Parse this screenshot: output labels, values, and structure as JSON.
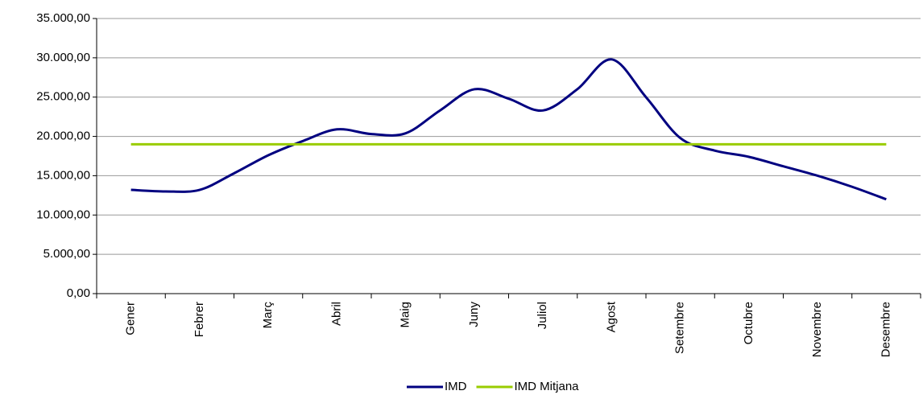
{
  "chart_data": {
    "type": "line",
    "categories": [
      "Gener",
      null,
      "Febrer",
      null,
      "Març",
      null,
      "Abril",
      null,
      "Maig",
      null,
      "Juny",
      null,
      "Juliol",
      null,
      "Agost",
      null,
      "Setembre",
      null,
      "Octubre",
      null,
      "Novembre",
      null,
      "Desembre"
    ],
    "series": [
      {
        "name": "IMD",
        "color": "#000080",
        "values": [
          13200,
          13000,
          13200,
          15300,
          17600,
          19400,
          20900,
          20300,
          20400,
          23300,
          26000,
          24800,
          23300,
          26000,
          29800,
          25000,
          19800,
          18200,
          17400,
          16200,
          15000,
          13600,
          12000
        ]
      },
      {
        "name": "IMD Mitjana",
        "color": "#99cc00",
        "values": [
          19000,
          19000,
          19000,
          19000,
          19000,
          19000,
          19000,
          19000,
          19000,
          19000,
          19000,
          19000,
          19000,
          19000,
          19000,
          19000,
          19000,
          19000,
          19000,
          19000,
          19000,
          19000,
          19000
        ]
      }
    ],
    "ylim": [
      0,
      35000
    ],
    "yticks": [
      {
        "value": 0,
        "label": "0,00"
      },
      {
        "value": 5000,
        "label": "5.000,00"
      },
      {
        "value": 10000,
        "label": "10.000,00"
      },
      {
        "value": 15000,
        "label": "15.000,00"
      },
      {
        "value": 20000,
        "label": "20.000,00"
      },
      {
        "value": 25000,
        "label": "25.000,00"
      },
      {
        "value": 30000,
        "label": "30.000,00"
      },
      {
        "value": 35000,
        "label": "35.000,00"
      }
    ],
    "grid": true,
    "legend": "bottom"
  }
}
